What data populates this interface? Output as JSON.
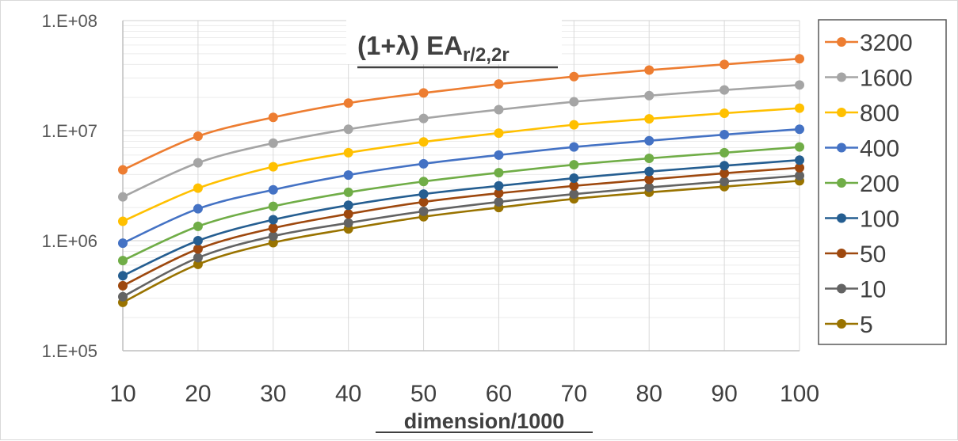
{
  "chart_data": {
    "type": "line",
    "title": {
      "main": "(1+λ) EA",
      "subscript": "r/2,2r"
    },
    "xlabel": "dimension/1000",
    "ylabel": "",
    "yscale": "log",
    "ylim": [
      100000,
      100000000
    ],
    "yticks": [
      "1.E+05",
      "1.E+06",
      "1.E+07",
      "1.E+08"
    ],
    "xlim": [
      10,
      100
    ],
    "x": [
      10,
      20,
      30,
      40,
      50,
      60,
      70,
      80,
      90,
      100
    ],
    "xticks": [
      "10",
      "20",
      "30",
      "40",
      "50",
      "60",
      "70",
      "80",
      "90",
      "100"
    ],
    "grid": true,
    "legend_position": "right",
    "series": [
      {
        "name": "3200",
        "color": "#ED7D31",
        "values": [
          4400000,
          8900000,
          13200000,
          17800000,
          22000000,
          26500000,
          31000000,
          35500000,
          40000000,
          45000000
        ]
      },
      {
        "name": "1600",
        "color": "#A5A5A5",
        "values": [
          2500000,
          5100000,
          7700000,
          10300000,
          12900000,
          15500000,
          18300000,
          20800000,
          23400000,
          26000000
        ]
      },
      {
        "name": "800",
        "color": "#FFC000",
        "values": [
          1500000,
          3000000,
          4700000,
          6300000,
          7900000,
          9500000,
          11300000,
          12800000,
          14400000,
          16000000
        ]
      },
      {
        "name": "400",
        "color": "#4472C4",
        "values": [
          950000,
          1950000,
          2900000,
          3950000,
          5000000,
          6000000,
          7100000,
          8100000,
          9200000,
          10300000
        ]
      },
      {
        "name": "200",
        "color": "#70AD47",
        "values": [
          660000,
          1350000,
          2050000,
          2750000,
          3450000,
          4150000,
          4900000,
          5600000,
          6300000,
          7100000
        ]
      },
      {
        "name": "100",
        "color": "#255E91",
        "values": [
          480000,
          1000000,
          1550000,
          2100000,
          2650000,
          3150000,
          3700000,
          4250000,
          4800000,
          5400000
        ]
      },
      {
        "name": "50",
        "color": "#9E480E",
        "values": [
          390000,
          840000,
          1300000,
          1750000,
          2250000,
          2700000,
          3150000,
          3600000,
          4100000,
          4600000
        ]
      },
      {
        "name": "10",
        "color": "#636363",
        "values": [
          310000,
          700000,
          1100000,
          1450000,
          1850000,
          2250000,
          2650000,
          3050000,
          3450000,
          3900000
        ]
      },
      {
        "name": "5",
        "color": "#997300",
        "values": [
          275000,
          610000,
          960000,
          1280000,
          1650000,
          2000000,
          2400000,
          2750000,
          3100000,
          3500000
        ]
      }
    ]
  }
}
